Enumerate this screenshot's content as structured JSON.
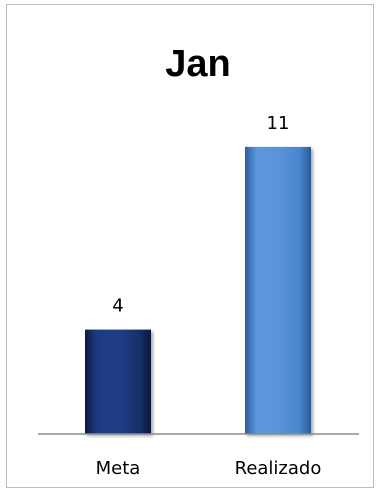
{
  "chart_data": {
    "type": "bar",
    "title": "Jan",
    "xlabel": "",
    "ylabel": "",
    "categories": [
      "Meta",
      "Realizado"
    ],
    "values": [
      4,
      11
    ],
    "data_labels": [
      "4",
      "11"
    ],
    "ylim": [
      0,
      12
    ],
    "grid": false,
    "legend": "none",
    "colors": [
      "#17306b",
      "#4a86cf"
    ]
  }
}
